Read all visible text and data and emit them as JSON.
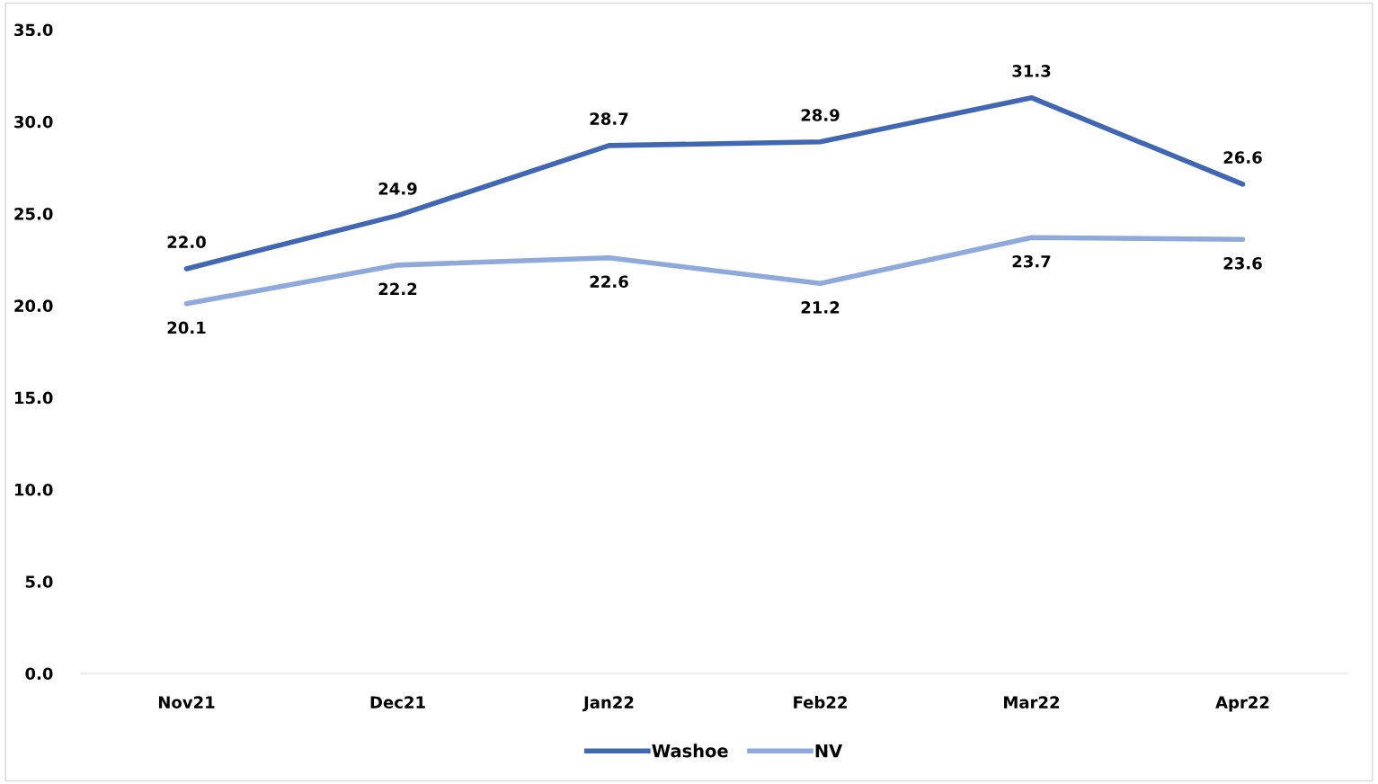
{
  "chart_data": {
    "type": "line",
    "categories": [
      "Nov21",
      "Dec21",
      "Jan22",
      "Feb22",
      "Mar22",
      "Apr22"
    ],
    "series": [
      {
        "name": "Washoe",
        "color": "#4267b2",
        "values": [
          22.0,
          24.9,
          28.7,
          28.9,
          31.3,
          26.6
        ],
        "value_labels": [
          "22.0",
          "24.9",
          "28.7",
          "28.9",
          "31.3",
          "26.6"
        ]
      },
      {
        "name": "NV",
        "color": "#8fa9da",
        "values": [
          20.1,
          22.2,
          22.6,
          21.2,
          23.7,
          23.6
        ],
        "value_labels": [
          "20.1",
          "22.2",
          "22.6",
          "21.2",
          "23.7",
          "23.6"
        ]
      }
    ],
    "ylim": [
      0,
      35
    ],
    "yticks": [
      {
        "value": 0,
        "label": "0.0"
      },
      {
        "value": 5,
        "label": "5.0"
      },
      {
        "value": 10,
        "label": "10.0"
      },
      {
        "value": 15,
        "label": "15.0"
      },
      {
        "value": 20,
        "label": "20.0"
      },
      {
        "value": 25,
        "label": "25.0"
      },
      {
        "value": 30,
        "label": "30.0"
      },
      {
        "value": 35,
        "label": "35.0"
      }
    ],
    "grid": false,
    "legend": "bottom",
    "marker": "none",
    "line_style": "solid"
  }
}
